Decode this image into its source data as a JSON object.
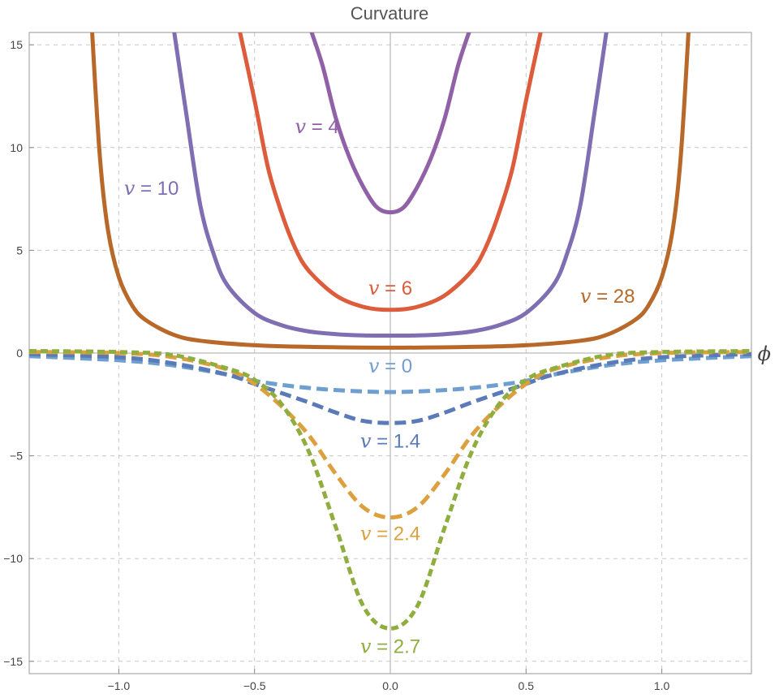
{
  "chart_data": {
    "type": "line",
    "title": "Curvature",
    "xlabel": "ϕ",
    "ylabel": "",
    "xlim": [
      -1.33,
      1.33
    ],
    "ylim": [
      -15.6,
      15.6
    ],
    "grid": true,
    "x_ticks": [
      {
        "value": -1.0,
        "label": "−1.0"
      },
      {
        "value": -0.5,
        "label": "−0.5"
      },
      {
        "value": 0.0,
        "label": "0.0"
      },
      {
        "value": 0.5,
        "label": "0.5"
      },
      {
        "value": 1.0,
        "label": "1.0"
      }
    ],
    "y_ticks": [
      {
        "value": 15,
        "label": "15"
      },
      {
        "value": 10,
        "label": "10"
      },
      {
        "value": 5,
        "label": "5"
      },
      {
        "value": 0,
        "label": "0"
      },
      {
        "value": -5,
        "label": "−5"
      },
      {
        "value": -10,
        "label": "−10"
      },
      {
        "value": -15,
        "label": "−15"
      }
    ],
    "series": [
      {
        "name": "v = 4",
        "style": "solid",
        "color": "#9061a6",
        "x": [
          -0.3,
          -0.25,
          -0.2,
          -0.15,
          -0.1,
          -0.05,
          0.0,
          0.05,
          0.1,
          0.15,
          0.2,
          0.25,
          0.3
        ],
        "values": [
          16.0,
          14.0,
          11.4,
          9.5,
          8.1,
          7.1,
          6.85,
          7.1,
          8.1,
          9.5,
          11.4,
          14.0,
          16.0
        ],
        "label": {
          "x": -0.27,
          "y": 10.7,
          "anchor": "middle",
          "text": "= 4"
        }
      },
      {
        "name": "v = 6",
        "style": "solid",
        "color": "#dd5c3b",
        "x": [
          -0.56,
          -0.5,
          -0.45,
          -0.4,
          -0.35,
          -0.3,
          -0.2,
          -0.1,
          0.0,
          0.1,
          0.2,
          0.3,
          0.35,
          0.4,
          0.45,
          0.5,
          0.56
        ],
        "values": [
          16.0,
          12.3,
          9.0,
          6.8,
          5.1,
          4.0,
          2.8,
          2.25,
          2.1,
          2.25,
          2.8,
          4.0,
          5.1,
          6.8,
          9.0,
          12.3,
          16.0
        ],
        "label": {
          "x": 0.0,
          "y": 2.85,
          "anchor": "middle",
          "text": "= 6"
        }
      },
      {
        "name": "v = 10",
        "style": "solid",
        "color": "#7f6fb2",
        "x": [
          -0.8,
          -0.75,
          -0.7,
          -0.65,
          -0.6,
          -0.5,
          -0.4,
          -0.3,
          -0.2,
          -0.1,
          0.0,
          0.1,
          0.2,
          0.3,
          0.4,
          0.5,
          0.6,
          0.65,
          0.7,
          0.75,
          0.8
        ],
        "values": [
          16.0,
          11.5,
          7.2,
          4.8,
          3.3,
          1.95,
          1.35,
          1.05,
          0.92,
          0.86,
          0.85,
          0.86,
          0.92,
          1.05,
          1.35,
          1.95,
          3.3,
          4.8,
          7.2,
          11.5,
          16.0
        ],
        "label": {
          "x": -0.88,
          "y": 7.7,
          "anchor": "middle",
          "text": "= 10"
        }
      },
      {
        "name": "v = 28",
        "style": "solid",
        "color": "#b8692a",
        "x": [
          -1.1,
          -1.07,
          -1.04,
          -1.0,
          -0.95,
          -0.9,
          -0.8,
          -0.7,
          -0.5,
          -0.3,
          0.0,
          0.3,
          0.5,
          0.7,
          0.8,
          0.9,
          0.95,
          1.0,
          1.04,
          1.07,
          1.1
        ],
        "values": [
          16.0,
          9.6,
          6.0,
          3.7,
          2.3,
          1.6,
          0.9,
          0.6,
          0.38,
          0.3,
          0.26,
          0.3,
          0.38,
          0.6,
          0.9,
          1.6,
          2.3,
          3.7,
          6.0,
          9.6,
          16.0
        ],
        "label": {
          "x": 0.8,
          "y": 2.45,
          "anchor": "middle",
          "text": "= 28"
        }
      },
      {
        "name": "v = 0",
        "style": "dashed",
        "color": "#6f9fcf",
        "x": [
          -1.33,
          -1.0,
          -0.8,
          -0.6,
          -0.5,
          -0.4,
          -0.3,
          -0.2,
          -0.1,
          0.0,
          0.1,
          0.2,
          0.3,
          0.4,
          0.5,
          0.6,
          0.8,
          1.0,
          1.33
        ],
        "values": [
          -0.15,
          -0.35,
          -0.6,
          -1.05,
          -1.35,
          -1.55,
          -1.7,
          -1.8,
          -1.87,
          -1.9,
          -1.87,
          -1.8,
          -1.7,
          -1.55,
          -1.35,
          -1.05,
          -0.6,
          -0.35,
          -0.15
        ],
        "label": {
          "x": 0.0,
          "y": -0.95,
          "anchor": "middle",
          "text": "= 0"
        }
      },
      {
        "name": "v = 1.4",
        "style": "dashed",
        "color": "#5b7bb8",
        "x": [
          -1.33,
          -1.0,
          -0.8,
          -0.6,
          -0.5,
          -0.4,
          -0.3,
          -0.2,
          -0.1,
          0.0,
          0.1,
          0.2,
          0.3,
          0.4,
          0.5,
          0.6,
          0.8,
          1.0,
          1.33
        ],
        "values": [
          -0.05,
          -0.2,
          -0.5,
          -1.05,
          -1.5,
          -1.95,
          -2.4,
          -2.9,
          -3.3,
          -3.4,
          -3.3,
          -2.9,
          -2.4,
          -1.95,
          -1.5,
          -1.05,
          -0.5,
          -0.2,
          -0.05
        ],
        "label": {
          "x": 0.0,
          "y": -4.6,
          "anchor": "middle",
          "text": "= 1.4"
        }
      },
      {
        "name": "v = 2.4",
        "style": "dashed",
        "color": "#dca03e",
        "x": [
          -1.33,
          -1.0,
          -0.8,
          -0.6,
          -0.5,
          -0.4,
          -0.3,
          -0.2,
          -0.1,
          0.0,
          0.1,
          0.2,
          0.3,
          0.4,
          0.5,
          0.6,
          0.8,
          1.0,
          1.33
        ],
        "values": [
          0.05,
          0.0,
          -0.2,
          -0.8,
          -1.5,
          -2.6,
          -4.0,
          -5.9,
          -7.5,
          -8.0,
          -7.5,
          -5.9,
          -4.0,
          -2.6,
          -1.5,
          -0.8,
          -0.2,
          0.0,
          0.05
        ],
        "label": {
          "x": 0.0,
          "y": -9.1,
          "anchor": "middle",
          "text": "= 2.4"
        }
      },
      {
        "name": "v = 2.7",
        "style": "dotted",
        "color": "#8fae3f",
        "x": [
          -1.33,
          -1.0,
          -0.8,
          -0.6,
          -0.5,
          -0.4,
          -0.3,
          -0.2,
          -0.1,
          0.0,
          0.1,
          0.2,
          0.3,
          0.4,
          0.5,
          0.6,
          0.8,
          1.0,
          1.33
        ],
        "values": [
          0.1,
          0.05,
          -0.1,
          -0.75,
          -1.3,
          -2.5,
          -4.8,
          -8.5,
          -12.3,
          -13.4,
          -12.3,
          -8.5,
          -4.8,
          -2.5,
          -1.3,
          -0.75,
          -0.1,
          0.05,
          0.1
        ],
        "label": {
          "x": 0.0,
          "y": -14.6,
          "anchor": "middle",
          "text": "= 2.7"
        }
      }
    ]
  }
}
